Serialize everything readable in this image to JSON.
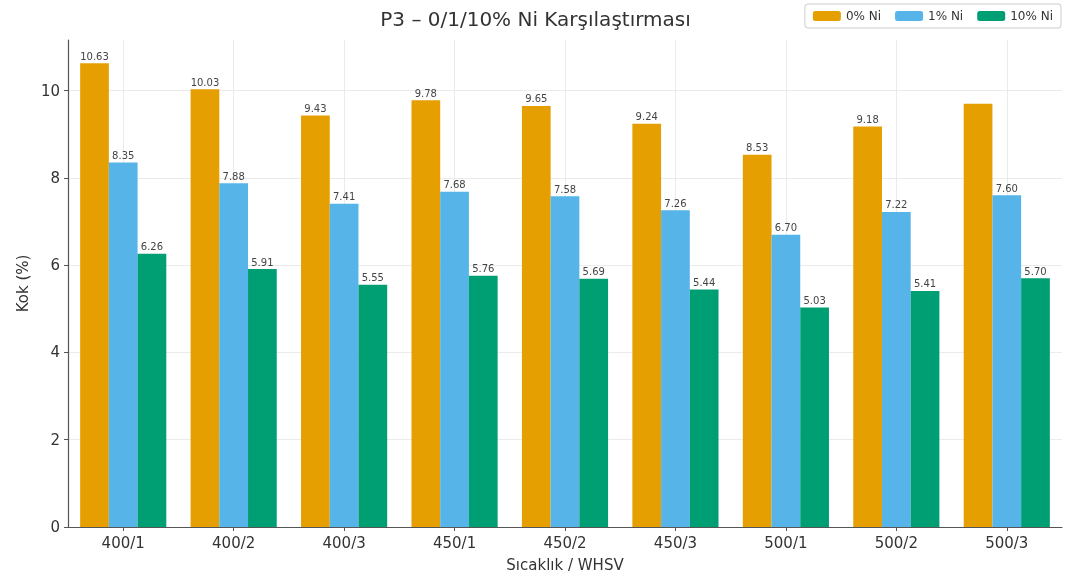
{
  "chart_data": {
    "type": "bar",
    "title": "P3 – 0/1/10% Ni Karşılaştırması",
    "xlabel": "Sıcaklık / WHSV",
    "ylabel": "Kok (%)",
    "categories": [
      "400/1",
      "400/2",
      "400/3",
      "450/1",
      "450/2",
      "450/3",
      "500/1",
      "500/2",
      "500/3"
    ],
    "series": [
      {
        "name": "0% Ni",
        "color": "#e69f00",
        "values": [
          10.63,
          10.03,
          9.43,
          9.78,
          9.65,
          9.24,
          8.53,
          9.18,
          9.7
        ],
        "value_labels": [
          "10.63",
          "10.03",
          "9.43",
          "9.78",
          "9.65",
          "9.24",
          "8.53",
          "9.18",
          null
        ]
      },
      {
        "name": "1% Ni",
        "color": "#56b4e9",
        "values": [
          8.35,
          7.88,
          7.41,
          7.68,
          7.58,
          7.26,
          6.7,
          7.22,
          7.6
        ],
        "value_labels": [
          "8.35",
          "7.88",
          "7.41",
          "7.68",
          "7.58",
          "7.26",
          "6.70",
          "7.22",
          "7.60"
        ]
      },
      {
        "name": "10% Ni",
        "color": "#009e73",
        "values": [
          6.26,
          5.91,
          5.55,
          5.76,
          5.69,
          5.44,
          5.03,
          5.41,
          5.7
        ],
        "value_labels": [
          "6.26",
          "5.91",
          "5.55",
          "5.76",
          "5.69",
          "5.44",
          "5.03",
          "5.41",
          "5.70"
        ]
      }
    ],
    "ylim": [
      0,
      11.16
    ],
    "yticks": [
      0,
      2,
      4,
      6,
      8,
      10
    ],
    "grid": true,
    "legend": "top right"
  }
}
